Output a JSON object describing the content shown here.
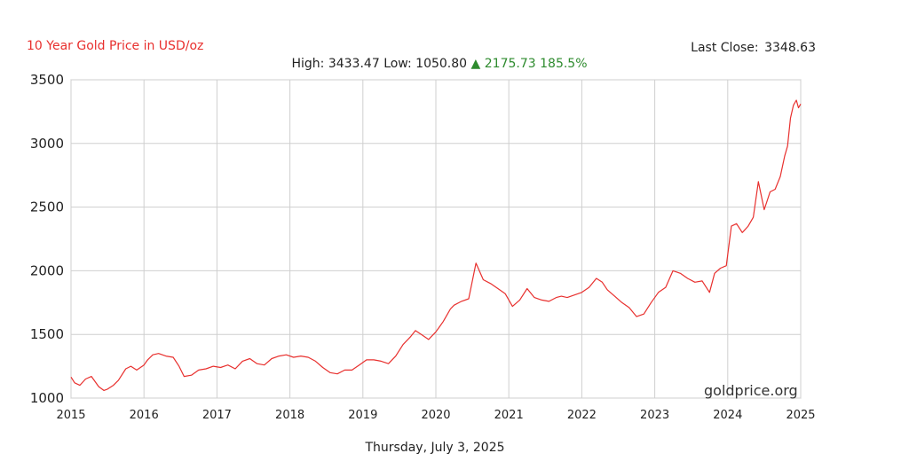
{
  "header": {
    "title": "10 Year Gold Price in USD/oz",
    "last_close_label": "Last Close:",
    "last_close_value": "3348.63",
    "high_label": "High:",
    "high_value": "3433.47",
    "low_label": "Low:",
    "low_value": "1050.80",
    "change_arrow": "▲",
    "change_value": "2175.73",
    "change_percent": "185.5%"
  },
  "footer": {
    "date": "Thursday, July 3, 2025"
  },
  "watermark": "goldprice.org",
  "colors": {
    "line": "#e8302e",
    "title": "#e8302e",
    "gain": "#2e8b2e",
    "grid": "#cfcfcf"
  },
  "chart_data": {
    "type": "line",
    "title": "10 Year Gold Price in USD/oz",
    "xlabel": "",
    "ylabel": "",
    "xlim": [
      2015,
      2025
    ],
    "ylim": [
      1000,
      3500
    ],
    "x_ticks": [
      "2015",
      "2016",
      "2017",
      "2018",
      "2019",
      "2020",
      "2021",
      "2022",
      "2023",
      "2024",
      "2025"
    ],
    "y_ticks": [
      "1000",
      "1500",
      "2000",
      "2500",
      "3000",
      "3500"
    ],
    "grid": true,
    "series": [
      {
        "x": [
          2015.0,
          2015.05,
          2015.12,
          2015.2,
          2015.28,
          2015.38,
          2015.45,
          2015.5,
          2015.58,
          2015.65,
          2015.75,
          2015.82,
          2015.9,
          2016.0,
          2016.05,
          2016.12,
          2016.2,
          2016.3,
          2016.4,
          2016.48,
          2016.55,
          2016.65,
          2016.75,
          2016.85,
          2016.95,
          2017.05,
          2017.15,
          2017.25,
          2017.35,
          2017.45,
          2017.55,
          2017.65,
          2017.75,
          2017.85,
          2017.95,
          2018.05,
          2018.15,
          2018.25,
          2018.35,
          2018.45,
          2018.55,
          2018.65,
          2018.75,
          2018.85,
          2018.95,
          2019.05,
          2019.15,
          2019.25,
          2019.35,
          2019.45,
          2019.55,
          2019.65,
          2019.72,
          2019.8,
          2019.9,
          2020.0,
          2020.05,
          2020.1,
          2020.15,
          2020.2,
          2020.25,
          2020.35,
          2020.45,
          2020.55,
          2020.65,
          2020.75,
          2020.85,
          2020.95,
          2021.05,
          2021.15,
          2021.25,
          2021.35,
          2021.45,
          2021.55,
          2021.65,
          2021.72,
          2021.8,
          2021.9,
          2022.0,
          2022.1,
          2022.2,
          2022.28,
          2022.35,
          2022.45,
          2022.55,
          2022.65,
          2022.75,
          2022.85,
          2022.95,
          2023.05,
          2023.15,
          2023.25,
          2023.35,
          2023.45,
          2023.55,
          2023.65,
          2023.75,
          2023.82,
          2023.9,
          2023.98,
          2024.05,
          2024.12,
          2024.2,
          2024.28,
          2024.35,
          2024.42,
          2024.5,
          2024.58,
          2024.65,
          2024.72,
          2024.78,
          2024.82,
          2024.86,
          2024.9,
          2024.94,
          2024.97,
          2025.0
        ],
        "y": [
          1165,
          1120,
          1100,
          1150,
          1170,
          1090,
          1060,
          1070,
          1100,
          1140,
          1230,
          1250,
          1220,
          1260,
          1300,
          1340,
          1350,
          1330,
          1320,
          1250,
          1170,
          1180,
          1220,
          1230,
          1250,
          1240,
          1260,
          1230,
          1290,
          1310,
          1270,
          1260,
          1310,
          1330,
          1340,
          1320,
          1330,
          1320,
          1290,
          1240,
          1200,
          1190,
          1220,
          1220,
          1260,
          1300,
          1300,
          1290,
          1270,
          1330,
          1420,
          1480,
          1530,
          1500,
          1460,
          1520,
          1560,
          1600,
          1650,
          1700,
          1730,
          1760,
          1780,
          2060,
          1930,
          1900,
          1860,
          1820,
          1720,
          1770,
          1860,
          1790,
          1770,
          1760,
          1790,
          1800,
          1790,
          1810,
          1830,
          1870,
          1940,
          1910,
          1850,
          1800,
          1750,
          1710,
          1640,
          1660,
          1750,
          1830,
          1870,
          2000,
          1980,
          1940,
          1910,
          1920,
          1830,
          1980,
          2020,
          2040,
          2350,
          2370,
          2300,
          2350,
          2420,
          2700,
          2480,
          2620,
          2640,
          2740,
          2900,
          2980,
          3200,
          3300,
          3340,
          3280,
          3310
        ]
      }
    ]
  }
}
